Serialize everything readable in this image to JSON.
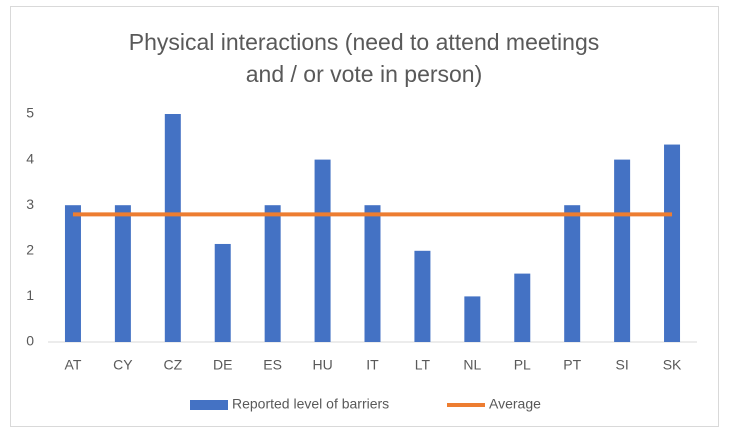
{
  "chart_data": {
    "type": "bar",
    "title": [
      "Physical interactions (need to attend meetings",
      "and / or vote in person)"
    ],
    "categories": [
      "AT",
      "CY",
      "CZ",
      "DE",
      "ES",
      "HU",
      "IT",
      "LT",
      "NL",
      "PL",
      "PT",
      "SI",
      "SK"
    ],
    "series": [
      {
        "name": "Reported level of barriers",
        "type": "bar",
        "color": "#4472c4",
        "values": [
          3,
          3,
          5,
          2.15,
          3,
          4,
          3,
          2,
          1,
          1.5,
          3,
          4,
          4.33
        ]
      },
      {
        "name": "Average",
        "type": "line",
        "color": "#ed7d31",
        "values": [
          2.8,
          2.8,
          2.8,
          2.8,
          2.8,
          2.8,
          2.8,
          2.8,
          2.8,
          2.8,
          2.8,
          2.8,
          2.8
        ]
      }
    ],
    "ylim": [
      0,
      5
    ],
    "yticks": [
      0,
      1,
      2,
      3,
      4,
      5
    ],
    "grid": false,
    "legend": "bottom"
  }
}
